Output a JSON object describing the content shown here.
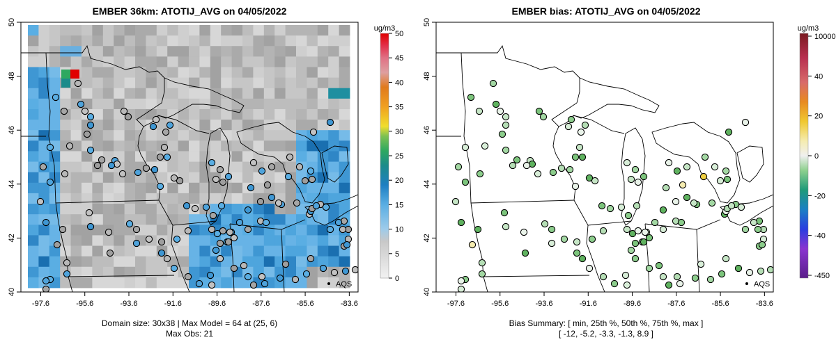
{
  "chart_data": [
    {
      "type": "heatmap",
      "title": "EMBER 36km: ATOTIJ_AVG on 04/05/2022",
      "x_ticks": [
        "-97.6",
        "-95.6",
        "-93.6",
        "-91.6",
        "-89.6",
        "-87.6",
        "-85.6",
        "-83.6"
      ],
      "y_ticks": [
        "40",
        "42",
        "44",
        "46",
        "48",
        "50"
      ],
      "xlim": [
        -98.5,
        -83.2
      ],
      "ylim": [
        40,
        50
      ],
      "colorbar": {
        "unit": "ug/m3",
        "ticks": [
          "0",
          "5",
          "10",
          "15",
          "20",
          "25",
          "30",
          "35",
          "40",
          "45",
          "50"
        ],
        "range": [
          0,
          50
        ]
      },
      "annotation": "AQS",
      "footer_lines": [
        "Domain size: 30x38 | Max Model = 64 at (25, 6)",
        "Max Obs: 21"
      ]
    },
    {
      "type": "scatter",
      "title": "EMBER bias: ATOTIJ_AVG on 04/05/2022",
      "x_ticks": [
        "-97.6",
        "-95.6",
        "-93.6",
        "-91.6",
        "-89.6",
        "-87.6",
        "-85.6",
        "-83.6"
      ],
      "y_ticks": [
        "40",
        "42",
        "44",
        "46",
        "48",
        "50"
      ],
      "xlim": [
        -98.5,
        -83.2
      ],
      "ylim": [
        40,
        50
      ],
      "colorbar": {
        "unit": "ug/m3",
        "ticks": [
          "10000",
          "40",
          "20",
          "0",
          "-20",
          "-40",
          "-450"
        ]
      },
      "annotation": "AQS",
      "footer_lines": [
        "Bias Summary: [ min, 25th %, 50th %, 75th %, max ]",
        "[ -12,  -5.2,  -3.3,  -1.3,  8.9 ]"
      ],
      "bias_summary": {
        "min": -12,
        "p25": -5.2,
        "p50": -3.3,
        "p75": -1.3,
        "max": 8.9
      }
    }
  ]
}
